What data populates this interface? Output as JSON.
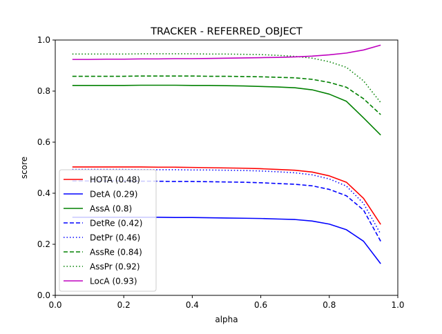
{
  "chart_data": {
    "type": "line",
    "title": "TRACKER - REFERRED_OBJECT",
    "xlabel": "alpha",
    "ylabel": "score",
    "xlim": [
      0.0,
      1.0
    ],
    "ylim": [
      0.0,
      1.0
    ],
    "xticks": [
      "0.0",
      "0.2",
      "0.4",
      "0.6",
      "0.8",
      "1.0"
    ],
    "yticks": [
      "0.0",
      "0.2",
      "0.4",
      "0.6",
      "0.8",
      "1.0"
    ],
    "grid": false,
    "legend_position": "lower-left",
    "x": [
      0.05,
      0.1,
      0.15,
      0.2,
      0.25,
      0.3,
      0.35,
      0.4,
      0.45,
      0.5,
      0.55,
      0.6,
      0.65,
      0.7,
      0.75,
      0.8,
      0.85,
      0.9,
      0.95
    ],
    "series": [
      {
        "name": "HOTA (0.48)",
        "color": "#ff0000",
        "dash": "solid",
        "values": [
          0.503,
          0.503,
          0.503,
          0.503,
          0.503,
          0.502,
          0.502,
          0.501,
          0.5,
          0.499,
          0.498,
          0.496,
          0.493,
          0.49,
          0.483,
          0.468,
          0.443,
          0.38,
          0.278
        ]
      },
      {
        "name": "DetA (0.29)",
        "color": "#0000ff",
        "dash": "solid",
        "values": [
          0.306,
          0.306,
          0.306,
          0.306,
          0.306,
          0.306,
          0.305,
          0.305,
          0.304,
          0.303,
          0.302,
          0.301,
          0.299,
          0.297,
          0.291,
          0.279,
          0.257,
          0.212,
          0.124
        ]
      },
      {
        "name": "AssA (0.8)",
        "color": "#008000",
        "dash": "solid",
        "values": [
          0.822,
          0.822,
          0.822,
          0.822,
          0.823,
          0.823,
          0.823,
          0.822,
          0.822,
          0.821,
          0.82,
          0.818,
          0.816,
          0.813,
          0.805,
          0.788,
          0.76,
          0.695,
          0.628
        ]
      },
      {
        "name": "DetRe (0.42)",
        "color": "#0000ff",
        "dash": "dashed",
        "values": [
          0.448,
          0.448,
          0.448,
          0.448,
          0.447,
          0.447,
          0.446,
          0.446,
          0.445,
          0.444,
          0.443,
          0.441,
          0.438,
          0.435,
          0.429,
          0.415,
          0.39,
          0.334,
          0.212
        ]
      },
      {
        "name": "DetPr (0.46)",
        "color": "#0000ff",
        "dash": "dotted",
        "values": [
          0.493,
          0.493,
          0.493,
          0.493,
          0.492,
          0.492,
          0.492,
          0.491,
          0.491,
          0.49,
          0.489,
          0.487,
          0.484,
          0.48,
          0.472,
          0.456,
          0.428,
          0.36,
          0.24
        ]
      },
      {
        "name": "AssRe (0.84)",
        "color": "#008000",
        "dash": "dashed",
        "values": [
          0.858,
          0.858,
          0.858,
          0.858,
          0.859,
          0.859,
          0.859,
          0.859,
          0.858,
          0.858,
          0.857,
          0.856,
          0.854,
          0.852,
          0.846,
          0.834,
          0.815,
          0.77,
          0.708
        ]
      },
      {
        "name": "AssPr (0.92)",
        "color": "#008000",
        "dash": "dotted",
        "values": [
          0.945,
          0.945,
          0.945,
          0.945,
          0.946,
          0.946,
          0.946,
          0.946,
          0.945,
          0.945,
          0.944,
          0.943,
          0.94,
          0.936,
          0.929,
          0.915,
          0.893,
          0.84,
          0.755
        ]
      },
      {
        "name": "LocA (0.93)",
        "color": "#bf00bf",
        "dash": "solid",
        "values": [
          0.924,
          0.924,
          0.925,
          0.925,
          0.926,
          0.926,
          0.927,
          0.927,
          0.928,
          0.929,
          0.93,
          0.931,
          0.932,
          0.934,
          0.937,
          0.942,
          0.949,
          0.961,
          0.98
        ]
      }
    ]
  }
}
